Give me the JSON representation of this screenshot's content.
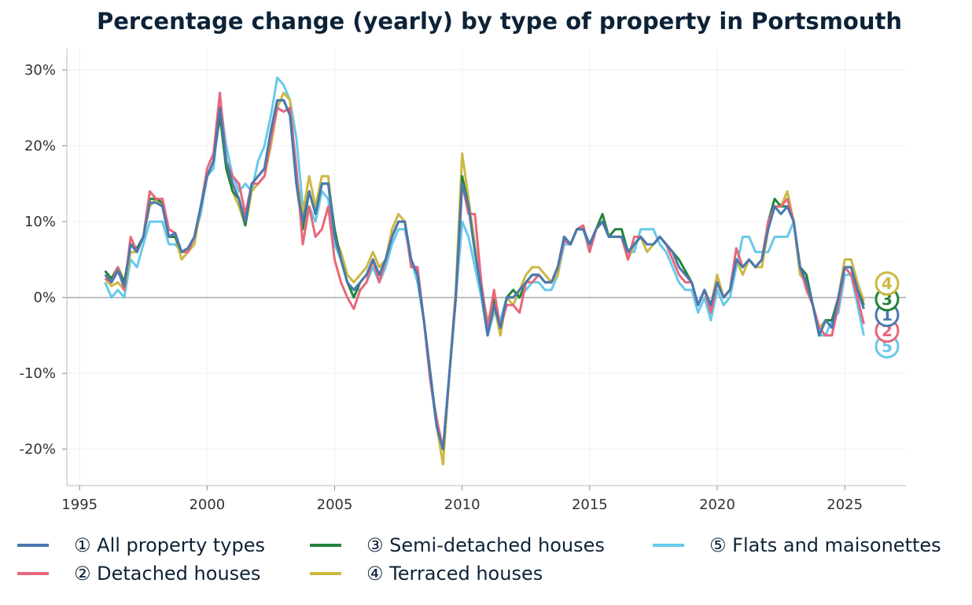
{
  "chart_data": {
    "type": "line",
    "title": "Percentage change (yearly) by type of property in Portsmouth",
    "xlabel": "",
    "ylabel": "",
    "xlim": [
      1994.5,
      2027.4
    ],
    "ylim": [
      -24.8,
      32.8
    ],
    "x_ticks": [
      1995,
      2000,
      2005,
      2010,
      2015,
      2020,
      2025
    ],
    "x_tick_labels": [
      "1995",
      "2000",
      "2005",
      "2010",
      "2015",
      "2020",
      "2025"
    ],
    "y_ticks": [
      -20,
      -10,
      0,
      10,
      20,
      30
    ],
    "y_tick_labels": [
      "-20%",
      "-10%",
      "0%",
      "10%",
      "20%",
      "30%"
    ],
    "grid": true,
    "legend_placement": "bottom",
    "x_start": 1996,
    "x_frequency": "quarterly",
    "series": [
      {
        "name": "① All property types",
        "marker": "1",
        "color": "#4a78b0",
        "values": [
          3,
          2,
          3.5,
          1.5,
          7,
          6,
          8,
          12.5,
          12.5,
          12,
          8,
          8.5,
          6,
          6.5,
          8,
          12,
          16,
          18,
          25,
          18,
          15,
          13,
          10,
          15,
          16,
          17,
          22,
          26,
          26,
          24,
          15,
          10,
          14,
          11,
          15,
          15,
          8,
          5,
          2,
          1,
          2,
          3,
          5,
          3,
          5,
          8,
          10,
          10,
          5,
          3,
          -3,
          -10,
          -17,
          -20,
          -10,
          0,
          15,
          12,
          6,
          1,
          -5,
          -1,
          -4,
          0,
          0,
          1,
          2,
          3,
          3,
          2,
          2,
          4,
          8,
          7,
          9,
          9,
          7,
          9,
          10,
          8,
          8,
          8,
          6,
          7,
          8,
          7,
          7,
          8,
          7,
          6,
          4,
          3,
          2,
          -1,
          1,
          -1,
          2,
          0,
          1,
          5,
          4,
          5,
          4,
          5,
          9,
          12,
          11,
          12,
          10,
          4,
          2,
          -1,
          -5,
          -3,
          -4,
          0,
          4,
          4,
          1,
          -1.5
        ]
      },
      {
        "name": "② Detached houses",
        "marker": "2",
        "color": "#e8677a",
        "values": [
          2.5,
          2,
          4,
          1,
          8,
          6,
          8,
          14,
          13,
          13,
          9,
          8.5,
          6,
          6,
          8,
          12,
          17,
          19,
          27,
          18,
          16,
          15,
          11,
          15,
          15,
          16,
          21,
          25,
          24.5,
          25,
          17,
          7,
          12,
          8,
          9,
          12,
          5,
          2,
          0,
          -1.5,
          1,
          2,
          5,
          2,
          5,
          8,
          10,
          10,
          4,
          4,
          -3,
          -11,
          -16,
          -20,
          -10,
          0,
          15,
          11,
          11,
          2,
          -4,
          1,
          -4,
          -1,
          -1,
          -2,
          2,
          2,
          3,
          2,
          2,
          4,
          7.5,
          7,
          9,
          9.5,
          6,
          9,
          10,
          8,
          8,
          8,
          5,
          8,
          8,
          7,
          7,
          8,
          7,
          5,
          3,
          2,
          2,
          -1,
          1,
          -2,
          2,
          0,
          1,
          6.5,
          4,
          5,
          4,
          5,
          10,
          12,
          12,
          13,
          10,
          4,
          1,
          -1,
          -4,
          -5,
          -5,
          -1,
          4,
          3,
          0,
          -3.5
        ]
      },
      {
        "name": "③ Semi-detached houses",
        "marker": "3",
        "color": "#23843a",
        "values": [
          3.5,
          2.5,
          4,
          2,
          7,
          6.5,
          8,
          13,
          13,
          12.5,
          8,
          8,
          6,
          6.5,
          8,
          12,
          16,
          18,
          24,
          17,
          14,
          13,
          9.5,
          15,
          16,
          17,
          22,
          26,
          26,
          24,
          15,
          9,
          14,
          11,
          15,
          15,
          9,
          5,
          2,
          0,
          2,
          3,
          5,
          3,
          5,
          8,
          10,
          10,
          5,
          3,
          -3,
          -10,
          -17,
          -20,
          -10,
          0,
          16,
          12,
          6,
          1,
          -5,
          0,
          -4,
          0,
          1,
          0,
          2,
          3,
          3,
          2,
          2,
          4,
          8,
          7,
          9,
          9,
          7,
          9,
          11,
          8,
          9,
          9,
          6,
          7,
          8,
          7,
          7,
          8,
          7,
          6,
          5,
          3.5,
          2,
          -1,
          1,
          -1,
          2,
          0,
          1,
          5,
          4,
          5,
          4,
          5,
          10,
          13,
          12,
          12,
          10,
          4,
          3,
          -1,
          -5,
          -3,
          -3,
          0,
          4,
          4,
          1,
          -1
        ]
      },
      {
        "name": "④ Terraced houses",
        "marker": "4",
        "color": "#ccb843",
        "values": [
          2.5,
          1.5,
          2,
          1,
          6,
          6,
          8,
          12,
          13,
          12,
          8,
          8,
          5,
          6,
          7,
          12,
          16,
          18,
          25,
          17,
          14,
          12,
          9.5,
          14,
          15,
          16,
          20,
          25,
          27,
          26,
          16,
          11,
          16,
          12,
          16,
          16,
          8,
          6,
          3,
          2,
          3,
          4,
          6,
          4,
          5,
          9,
          11,
          10,
          5,
          3,
          -3,
          -10,
          -17,
          -22,
          -10,
          1,
          19,
          13,
          7,
          1,
          -3,
          -1,
          -5,
          0,
          -1,
          1,
          3,
          4,
          4,
          3,
          2,
          3,
          8,
          7,
          9,
          9,
          7,
          9,
          10,
          8,
          8,
          8,
          5,
          7,
          8,
          6,
          7,
          8,
          7,
          6,
          4,
          3,
          2,
          -1,
          1,
          -1,
          3,
          0,
          1,
          5,
          3,
          5,
          4,
          4,
          9,
          12,
          12,
          14,
          10,
          3,
          2,
          -1,
          -4,
          -3,
          -3,
          0,
          5,
          5,
          2,
          -0.5
        ]
      },
      {
        "name": "⑤ Flats and maisonettes",
        "marker": "5",
        "color": "#66c9ea",
        "values": [
          2,
          0,
          1,
          0,
          5,
          4,
          7,
          10,
          10,
          10,
          7,
          7,
          6,
          6,
          8,
          11,
          16,
          17,
          26,
          20,
          16,
          14,
          15,
          14,
          18,
          20,
          24,
          29,
          28,
          26,
          21,
          12,
          12,
          10,
          14,
          13,
          7,
          5,
          2,
          1,
          1,
          2,
          4,
          2,
          4,
          7,
          9,
          9,
          5,
          2,
          -3,
          -11,
          -17,
          -20,
          -10,
          0,
          10,
          8,
          4,
          0,
          -5,
          -2,
          -3,
          0,
          0,
          0,
          1,
          2,
          2,
          1,
          1,
          3,
          7,
          7,
          9,
          9,
          6,
          9,
          10,
          8,
          8,
          8,
          6,
          6,
          9,
          9,
          9,
          7,
          6,
          4,
          2,
          1,
          1,
          -2,
          0,
          -3,
          1,
          -1,
          0,
          4,
          8,
          8,
          6,
          6,
          6,
          8,
          8,
          8,
          10,
          3,
          2,
          -1,
          -5,
          -5,
          -3,
          -2,
          3,
          3,
          -1,
          -5
        ]
      }
    ]
  }
}
